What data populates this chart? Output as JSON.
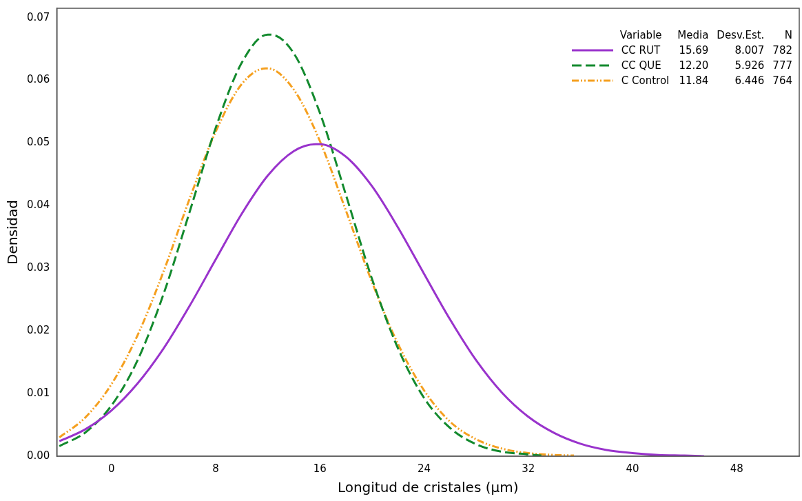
{
  "chart_data": {
    "type": "line",
    "xlabel": "Longitud de cristales (µm)",
    "ylabel": "Densidad",
    "legend": "top right",
    "legend_title": "Variable",
    "annotations": [
      "Media",
      "Desv.Est.",
      "N",
      "15.69",
      "8.007",
      "782",
      "12.20",
      "5.926",
      "777",
      "11.84",
      "6.446",
      "764"
    ],
    "xlim": [
      -4.2,
      52.8
    ],
    "xticks": [
      0,
      8,
      16,
      24,
      32,
      40,
      48
    ],
    "ylim": [
      0,
      0.0715
    ],
    "yticks": [
      {
        "value": 0,
        "label": "0.00"
      },
      {
        "value": 0.01,
        "label": "0.01"
      },
      {
        "value": 0.02,
        "label": "0.02"
      },
      {
        "value": 0.03,
        "label": "0.03"
      },
      {
        "value": 0.04,
        "label": "0.04"
      },
      {
        "value": 0.05,
        "label": "0.05"
      },
      {
        "value": 0.06,
        "label": "0.06"
      },
      {
        "value": 0.07,
        "label": "0.07"
      }
    ],
    "series": [
      {
        "name": "CC RUT",
        "color": "#9933cc",
        "line_style": "solid",
        "x": [
          -4,
          -2,
          0,
          2,
          4,
          6,
          8,
          10,
          12,
          14,
          15.69,
          16,
          18,
          20,
          22,
          24,
          26,
          28,
          30,
          32,
          34,
          36,
          38,
          40,
          42,
          44,
          45.5
        ],
        "values": [
          0.0024,
          0.0043,
          0.0073,
          0.0116,
          0.0172,
          0.024,
          0.0314,
          0.0387,
          0.0448,
          0.0487,
          0.0498,
          0.0498,
          0.0478,
          0.0431,
          0.0365,
          0.0291,
          0.0218,
          0.0153,
          0.0101,
          0.0063,
          0.0037,
          0.002,
          0.001,
          0.0005,
          0.0002,
          0.0001,
          0
        ]
      },
      {
        "name": "CC QUE",
        "color": "#138a2e",
        "line_style": "dashed",
        "x": [
          -4,
          -2,
          0,
          2,
          4,
          6,
          8,
          10,
          12,
          12.2,
          14,
          16,
          18,
          20,
          22,
          24,
          26,
          28,
          30,
          32,
          33
        ],
        "values": [
          0.0016,
          0.0038,
          0.0081,
          0.0153,
          0.0259,
          0.039,
          0.0524,
          0.0628,
          0.0673,
          0.0673,
          0.0643,
          0.0548,
          0.0417,
          0.0283,
          0.0172,
          0.0093,
          0.0045,
          0.0019,
          0.0007,
          0.0003,
          0.0001
        ]
      },
      {
        "name": "C Control",
        "color": "#f5a020",
        "line_style": "dashdot",
        "x": [
          -4,
          -2,
          0,
          2,
          4,
          6,
          8,
          10,
          11.84,
          12,
          14,
          16,
          18,
          20,
          22,
          24,
          26,
          28,
          30,
          32,
          34,
          35.5
        ],
        "values": [
          0.003,
          0.0062,
          0.0115,
          0.0193,
          0.0295,
          0.0411,
          0.0518,
          0.0594,
          0.0619,
          0.0619,
          0.0585,
          0.0503,
          0.0392,
          0.0278,
          0.0179,
          0.0105,
          0.0055,
          0.0027,
          0.0012,
          0.0005,
          0.0002,
          0.0001
        ]
      }
    ]
  }
}
